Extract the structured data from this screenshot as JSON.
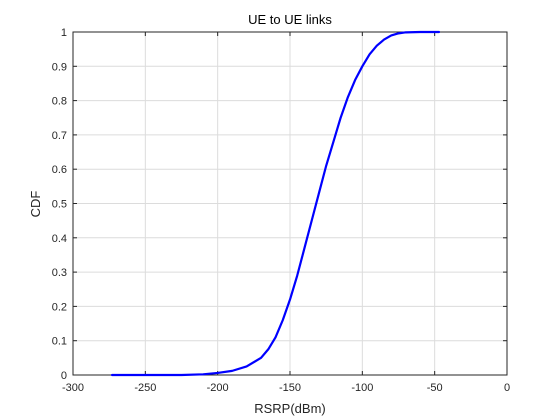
{
  "chart_data": {
    "type": "line",
    "title": "UE to UE links",
    "xlabel": "RSRP(dBm)",
    "ylabel": "CDF",
    "xlim": [
      -300,
      0
    ],
    "ylim": [
      0,
      1
    ],
    "xticks": [
      -300,
      -250,
      -200,
      -150,
      -100,
      -50,
      0
    ],
    "yticks": [
      0,
      0.1,
      0.2,
      0.3,
      0.4,
      0.5,
      0.6,
      0.7,
      0.8,
      0.9,
      1
    ],
    "xtick_labels": [
      "-300",
      "-250",
      "-200",
      "-150",
      "-100",
      "-50",
      "0"
    ],
    "ytick_labels": [
      "0",
      "0.1",
      "0.2",
      "0.3",
      "0.4",
      "0.5",
      "0.6",
      "0.7",
      "0.8",
      "0.9",
      "1"
    ],
    "grid": true,
    "series": [
      {
        "color": "#0000ff",
        "x": [
          -273,
          -250,
          -225,
          -210,
          -200,
          -190,
          -180,
          -170,
          -165,
          -160,
          -155,
          -150,
          -145,
          -140,
          -135,
          -130,
          -125,
          -120,
          -115,
          -110,
          -105,
          -100,
          -95,
          -90,
          -85,
          -80,
          -75,
          -70,
          -60,
          -50,
          -47
        ],
        "y": [
          0,
          0,
          0,
          0.002,
          0.006,
          0.012,
          0.025,
          0.05,
          0.075,
          0.11,
          0.16,
          0.22,
          0.29,
          0.37,
          0.45,
          0.53,
          0.61,
          0.68,
          0.75,
          0.81,
          0.86,
          0.9,
          0.935,
          0.96,
          0.978,
          0.99,
          0.996,
          0.999,
          1,
          1,
          1
        ]
      }
    ]
  }
}
